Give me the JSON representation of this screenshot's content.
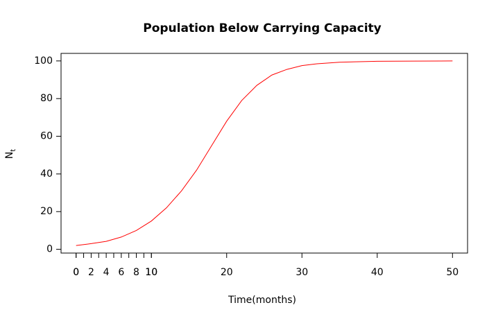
{
  "chart_data": {
    "type": "line",
    "title": "Population Below Carrying Capacity",
    "xlabel": "Time(months)",
    "ylabel": "N",
    "ylabel_sub": "t",
    "x": [
      0,
      2,
      4,
      6,
      8,
      10,
      12,
      14,
      16,
      18,
      20,
      22,
      24,
      26,
      28,
      30,
      32,
      35,
      40,
      45,
      50
    ],
    "series": [
      {
        "name": "N",
        "color": "#ff0000",
        "values": [
          2,
          3,
          4.2,
          6.5,
          10,
          15,
          22,
          31,
          42,
          55,
          68,
          79,
          87,
          92.5,
          95.5,
          97.5,
          98.5,
          99.3,
          99.8,
          99.9,
          100
        ]
      }
    ],
    "xlim": [
      -2,
      52
    ],
    "ylim": [
      -2,
      104
    ],
    "xticks": [
      0,
      10,
      20,
      30,
      40,
      50
    ],
    "xticks_minor": [
      0,
      {
        "value": 1,
        "label": null
      },
      2,
      {
        "value": 3,
        "label": null
      },
      4,
      {
        "value": 5,
        "label": null
      },
      6,
      {
        "value": 7,
        "label": null
      },
      8,
      {
        "value": 9,
        "label": null
      },
      10
    ],
    "yticks": [
      0,
      20,
      40,
      60,
      80,
      100
    ],
    "grid": false
  }
}
